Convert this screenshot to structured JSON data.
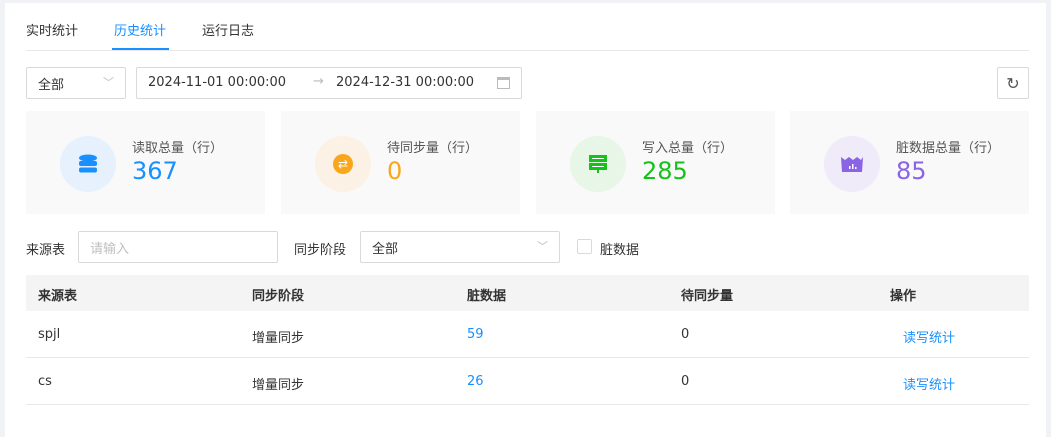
{
  "tabs": [
    {
      "label": "实时统计"
    },
    {
      "label": "历史统计",
      "active": true
    },
    {
      "label": "运行日志"
    }
  ],
  "filters": {
    "scope": "全部",
    "date_start": "2024-11-01 00:00:00",
    "date_end": "2024-12-31 00:00:00",
    "source_label": "来源表",
    "source_placeholder": "请输入",
    "stage_label": "同步阶段",
    "stage_value": "全部",
    "dirty_label": "脏数据",
    "dirty_checked": false
  },
  "cards": [
    {
      "label": "读取总量（行）",
      "value": "367",
      "color": "#1890ff",
      "bg": "#e6f1fd",
      "icon": "database-icon"
    },
    {
      "label": "待同步量（行）",
      "value": "0",
      "color": "#faa61a",
      "bg": "#fbf1e4",
      "icon": "exchange-icon"
    },
    {
      "label": "写入总量（行）",
      "value": "285",
      "color": "#15c21a",
      "bg": "#e7f6e7",
      "icon": "server-icon"
    },
    {
      "label": "脏数据总量（行）",
      "value": "85",
      "color": "#8b64e5",
      "bg": "#f0ebf9",
      "icon": "dirty-basin-icon"
    }
  ],
  "table": {
    "columns": [
      "来源表",
      "同步阶段",
      "脏数据",
      "待同步量",
      "操作"
    ],
    "rows": [
      {
        "source": "spjl",
        "stage": "增量同步",
        "dirty": "59",
        "pending": "0",
        "action": "读写统计"
      },
      {
        "source": "cs",
        "stage": "增量同步",
        "dirty": "26",
        "pending": "0",
        "action": "读写统计"
      }
    ]
  }
}
